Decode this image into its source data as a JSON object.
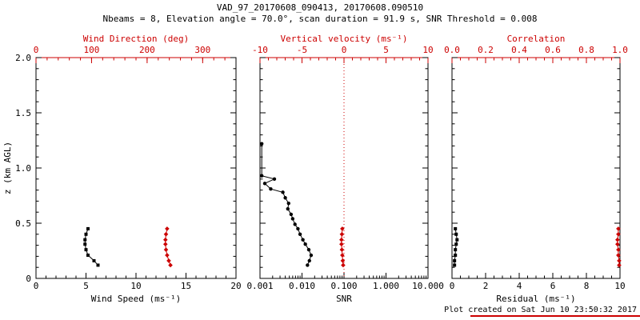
{
  "header": {
    "title": "VAD_97_20170608_090413, 20170608.090510",
    "subtitle": "Nbeams = 8, Elevation angle = 70.0°, scan duration = 91.9 s, SNR Threshold = 0.008"
  },
  "footer": {
    "created": "Plot created on Sat Jun 10 23:50:32 2017"
  },
  "colors": {
    "axis": "#000000",
    "secondary": "#cc0000",
    "background": "#ffffff"
  },
  "chart_data": [
    {
      "type": "line",
      "name": "wind-panel",
      "ylabel": "z (km AGL)",
      "ylim": [
        0,
        2
      ],
      "yticks": [
        0,
        0.5,
        1.0,
        1.5,
        2.0
      ],
      "ytick_labels": [
        "0",
        "0.5",
        "1.0",
        "1.5",
        "2.0"
      ],
      "bottom_axis": {
        "label": "Wind Speed (ms⁻¹)",
        "scale": "linear",
        "lim": [
          0,
          20
        ],
        "ticks": [
          0,
          5,
          10,
          15,
          20
        ],
        "tick_labels": [
          "0",
          "5",
          "10",
          "15",
          "20"
        ],
        "minor_step": 1
      },
      "top_axis": {
        "label": "Wind Direction (deg)",
        "scale": "linear",
        "lim": [
          0,
          360
        ],
        "ticks": [
          0,
          100,
          200,
          300
        ],
        "tick_labels": [
          "0",
          "100",
          "200",
          "300"
        ],
        "minor_step": 20
      },
      "series": [
        {
          "name": "wind-speed",
          "axis": "bottom",
          "color": "#000000",
          "marker": "square",
          "z": [
            0.12,
            0.16,
            0.21,
            0.26,
            0.31,
            0.35,
            0.4,
            0.45
          ],
          "values": [
            6.2,
            5.8,
            5.2,
            5.0,
            4.9,
            4.9,
            5.0,
            5.2
          ]
        },
        {
          "name": "wind-direction",
          "axis": "top",
          "color": "#cc0000",
          "marker": "diamond",
          "z": [
            0.12,
            0.16,
            0.21,
            0.26,
            0.31,
            0.35,
            0.4,
            0.45
          ],
          "values": [
            242,
            239,
            236,
            234,
            233,
            233,
            234,
            236
          ]
        }
      ]
    },
    {
      "type": "line",
      "name": "snr-panel",
      "ylim": [
        0,
        2
      ],
      "yticks": [
        0,
        0.5,
        1.0,
        1.5,
        2.0
      ],
      "ytick_labels": [
        "0",
        "0.5",
        "1.0",
        "1.5",
        "2.0"
      ],
      "bottom_axis": {
        "label": "SNR",
        "scale": "log",
        "lim": [
          0.001,
          10
        ],
        "ticks": [
          0.001,
          0.01,
          0.1,
          1,
          10
        ],
        "tick_labels": [
          "0.001",
          "0.010",
          "0.100",
          "1.000",
          "10.000"
        ]
      },
      "top_axis": {
        "label": "Vertical velocity (ms⁻¹)",
        "scale": "linear",
        "lim": [
          -10,
          10
        ],
        "ticks": [
          -10,
          -5,
          0,
          5,
          10
        ],
        "tick_labels": [
          "-10",
          "-5",
          "0",
          "5",
          "10"
        ],
        "minor_step": 1
      },
      "ref_line": {
        "axis": "top",
        "value": 0,
        "color": "#cc0000",
        "style": "dotted"
      },
      "series": [
        {
          "name": "snr-profile",
          "axis": "bottom",
          "color": "#000000",
          "marker": "circle",
          "z": [
            1.22,
            0.93,
            0.9,
            0.86,
            0.81,
            0.78,
            0.73,
            0.68,
            0.63,
            0.58,
            0.54,
            0.49,
            0.45,
            0.4,
            0.35,
            0.31,
            0.26,
            0.21,
            0.16,
            0.12
          ],
          "values": [
            0.0011,
            0.0011,
            0.0022,
            0.0013,
            0.0018,
            0.0035,
            0.004,
            0.0048,
            0.0046,
            0.0055,
            0.006,
            0.0068,
            0.008,
            0.009,
            0.0105,
            0.012,
            0.0145,
            0.0165,
            0.015,
            0.0135
          ]
        },
        {
          "name": "vertical-velocity",
          "axis": "top",
          "color": "#cc0000",
          "marker": "diamond",
          "z": [
            0.12,
            0.16,
            0.21,
            0.26,
            0.31,
            0.35,
            0.4,
            0.45
          ],
          "values": [
            -0.1,
            -0.15,
            -0.2,
            -0.25,
            -0.3,
            -0.3,
            -0.25,
            -0.2
          ]
        }
      ]
    },
    {
      "type": "line",
      "name": "residual-panel",
      "ylim": [
        0,
        2
      ],
      "yticks": [
        0,
        0.5,
        1.0,
        1.5,
        2.0
      ],
      "ytick_labels": [
        "0",
        "0.5",
        "1.0",
        "1.5",
        "2.0"
      ],
      "bottom_axis": {
        "label": "Residual (ms⁻¹)",
        "scale": "linear",
        "lim": [
          0,
          10
        ],
        "ticks": [
          0,
          2,
          4,
          6,
          8,
          10
        ],
        "tick_labels": [
          "0",
          "2",
          "4",
          "6",
          "8",
          "10"
        ],
        "minor_step": 0.5
      },
      "top_axis": {
        "label": "Correlation",
        "scale": "linear",
        "lim": [
          0,
          1
        ],
        "ticks": [
          0,
          0.2,
          0.4,
          0.6,
          0.8,
          1.0
        ],
        "tick_labels": [
          "0.0",
          "0.2",
          "0.4",
          "0.6",
          "0.8",
          "1.0"
        ],
        "minor_step": 0.05
      },
      "series": [
        {
          "name": "residual",
          "axis": "bottom",
          "color": "#000000",
          "marker": "square",
          "z": [
            0.12,
            0.16,
            0.21,
            0.26,
            0.31,
            0.35,
            0.4,
            0.45
          ],
          "values": [
            0.15,
            0.15,
            0.2,
            0.2,
            0.25,
            0.3,
            0.25,
            0.2
          ]
        },
        {
          "name": "correlation",
          "axis": "top",
          "color": "#cc0000",
          "marker": "diamond",
          "z": [
            0.12,
            0.16,
            0.21,
            0.26,
            0.31,
            0.35,
            0.4,
            0.45
          ],
          "values": [
            0.995,
            0.995,
            0.99,
            0.99,
            0.985,
            0.985,
            0.99,
            0.99
          ]
        }
      ]
    }
  ]
}
